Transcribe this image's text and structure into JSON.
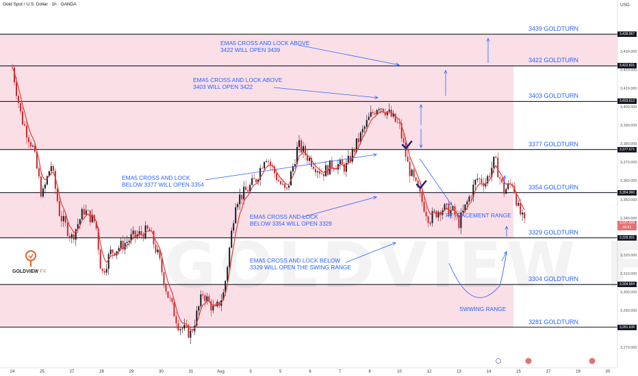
{
  "header": {
    "symbol": "Gold Spot / U.S. Dollar · 1h · OANDA",
    "currency": "USD"
  },
  "brand": {
    "name": "GOLDVIEW",
    "suffix": "FX",
    "watermark": "GOLDVIEW FX"
  },
  "colors": {
    "zone": "#f8d4df",
    "line": "#131722",
    "text": "#2962ff",
    "up": "#131722",
    "down": "#c62828",
    "ema": "#e53935"
  },
  "chart_data": {
    "type": "candlestick",
    "ylim": [
      3265,
      3447
    ],
    "y_ticks": [
      3270,
      3280,
      3290,
      3300,
      3310,
      3320,
      3330,
      3340,
      3350,
      3360,
      3370,
      3380,
      3390,
      3400,
      3410,
      3420,
      3430,
      3440
    ],
    "x_ticks": [
      {
        "label": "24",
        "x": 0
      },
      {
        "label": "25",
        "x": 1
      },
      {
        "label": "27",
        "x": 2
      },
      {
        "label": "28",
        "x": 3
      },
      {
        "label": "29",
        "x": 4
      },
      {
        "label": "30",
        "x": 5
      },
      {
        "label": "31",
        "x": 6
      },
      {
        "label": "Aug",
        "x": 7
      },
      {
        "label": "3",
        "x": 8
      },
      {
        "label": "5",
        "x": 9
      },
      {
        "label": "6",
        "x": 10
      },
      {
        "label": "7",
        "x": 11
      },
      {
        "label": "8",
        "x": 12
      },
      {
        "label": "10",
        "x": 13
      },
      {
        "label": "12",
        "x": 14
      },
      {
        "label": "13",
        "x": 15
      },
      {
        "label": "14",
        "x": 16
      },
      {
        "label": "15",
        "x": 17
      },
      {
        "label": "17",
        "x": 18
      },
      {
        "label": "19",
        "x": 19
      },
      {
        "label": "20",
        "x": 20
      }
    ],
    "levels": [
      {
        "price": 3439.967,
        "price_label": "3,439.967",
        "label": "3439 GOLDTURN"
      },
      {
        "price": 3422.831,
        "price_label": "3,422.831",
        "label": "3422 GOLDTURN"
      },
      {
        "price": 3403.612,
        "price_label": "3,403.612",
        "label": "3403 GOLDTURN"
      },
      {
        "price": 3377.671,
        "price_label": "3,377.671",
        "label": "3377 GOLDTURN"
      },
      {
        "price": 3354.36,
        "price_label": "3,354.360",
        "label": "3354 GOLDTURN"
      },
      {
        "price": 3329.931,
        "price_label": "3,329.931",
        "label": "3329 GOLDTURN"
      },
      {
        "price": 3304.664,
        "price_label": "3,304.664",
        "label": "3304 GOLDTURN"
      },
      {
        "price": 3281.638,
        "price_label": "3,281.638",
        "label": "3281 GOLDTURN"
      }
    ],
    "last_price": {
      "price": 3337.595,
      "label": "3,337.595",
      "countdown": "46:41"
    },
    "price_path": [
      [
        0,
        3422
      ],
      [
        0.3,
        3395
      ],
      [
        0.7,
        3378
      ],
      [
        1.0,
        3352
      ],
      [
        1.3,
        3370
      ],
      [
        1.6,
        3342
      ],
      [
        2.0,
        3330
      ],
      [
        2.4,
        3345
      ],
      [
        2.8,
        3338
      ],
      [
        3.0,
        3310
      ],
      [
        3.3,
        3322
      ],
      [
        3.7,
        3326
      ],
      [
        4.0,
        3330
      ],
      [
        4.3,
        3332
      ],
      [
        4.6,
        3334
      ],
      [
        4.9,
        3320
      ],
      [
        5.2,
        3300
      ],
      [
        5.6,
        3282
      ],
      [
        6.0,
        3278
      ],
      [
        6.4,
        3300
      ],
      [
        6.8,
        3290
      ],
      [
        7.1,
        3300
      ],
      [
        7.5,
        3350
      ],
      [
        7.9,
        3356
      ],
      [
        8.2,
        3362
      ],
      [
        8.5,
        3375
      ],
      [
        8.9,
        3362
      ],
      [
        9.2,
        3354
      ],
      [
        9.6,
        3380
      ],
      [
        10.0,
        3372
      ],
      [
        10.4,
        3365
      ],
      [
        10.8,
        3370
      ],
      [
        11.2,
        3368
      ],
      [
        11.6,
        3382
      ],
      [
        12.0,
        3395
      ],
      [
        12.3,
        3402
      ],
      [
        12.6,
        3398
      ],
      [
        13.0,
        3390
      ],
      [
        13.3,
        3368
      ],
      [
        13.7,
        3352
      ],
      [
        14.0,
        3340
      ],
      [
        14.4,
        3346
      ],
      [
        14.8,
        3344
      ],
      [
        15.0,
        3338
      ],
      [
        15.3,
        3350
      ],
      [
        15.6,
        3362
      ],
      [
        15.9,
        3360
      ],
      [
        16.2,
        3372
      ],
      [
        16.5,
        3355
      ],
      [
        16.8,
        3360
      ],
      [
        17.0,
        3345
      ],
      [
        17.2,
        3337.595
      ]
    ],
    "notes": [
      {
        "lines": [
          "EMA5 CROSS AND LOCK ABOVE",
          "3422 WILL OPEN 3439"
        ]
      },
      {
        "lines": [
          "EMA5 CROSS AND LOCK ABOVE",
          "3403 WILL OPEN 3422"
        ]
      },
      {
        "lines": [
          "EMA5 CROSS AND LOCK",
          "BELOW 3377 WILL OPEN 3354"
        ]
      },
      {
        "lines": [
          "EMA5 CROSS AND LOCK",
          "BELOW 3354 WILL OPEN 3329"
        ]
      },
      {
        "lines": [
          "EMA5 CROSS AND LOCK BELOW",
          "3329 WILL OPEN THE SWING RANGE"
        ]
      },
      {
        "lines": [
          "RETRACEMENT RANGE"
        ]
      },
      {
        "lines": [
          "SWWING RANGE"
        ]
      }
    ]
  }
}
